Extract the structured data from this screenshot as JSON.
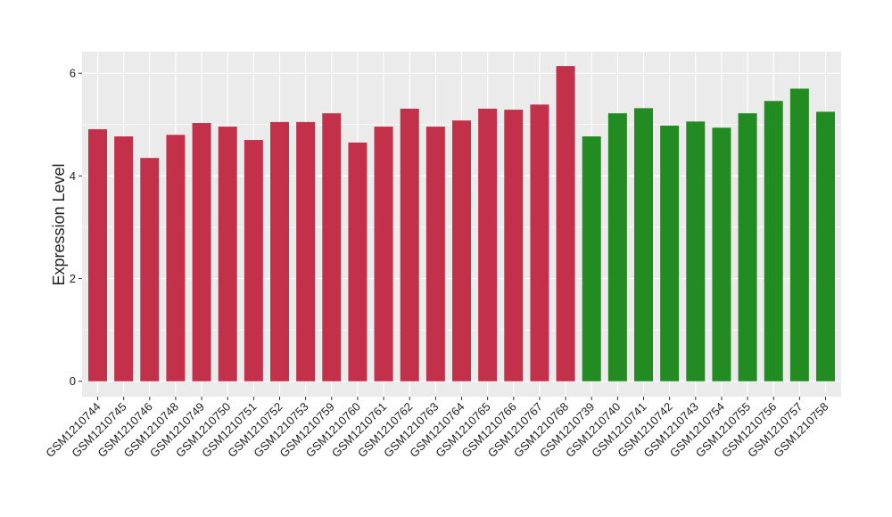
{
  "chart_data": {
    "type": "bar",
    "y_label": "Expression Level",
    "categories": [
      "GSM1210744",
      "GSM1210745",
      "GSM1210746",
      "GSM1210748",
      "GSM1210749",
      "GSM1210750",
      "GSM1210751",
      "GSM1210752",
      "GSM1210753",
      "GSM1210759",
      "GSM1210760",
      "GSM1210761",
      "GSM1210762",
      "GSM1210763",
      "GSM1210764",
      "GSM1210765",
      "GSM1210766",
      "GSM1210767",
      "GSM1210768",
      "GSM1210739",
      "GSM1210740",
      "GSM1210741",
      "GSM1210742",
      "GSM1210743",
      "GSM1210754",
      "GSM1210755",
      "GSM1210756",
      "GSM1210757",
      "GSM1210758"
    ],
    "values": [
      4.91,
      4.77,
      4.35,
      4.8,
      5.03,
      4.96,
      4.7,
      5.05,
      5.05,
      5.22,
      4.65,
      4.96,
      5.31,
      4.96,
      5.08,
      5.31,
      5.29,
      5.39,
      6.14,
      4.77,
      5.22,
      5.32,
      4.98,
      5.06,
      4.94,
      5.22,
      5.46,
      5.7,
      5.25
    ],
    "colors": [
      "#c3304a",
      "#c3304a",
      "#c3304a",
      "#c3304a",
      "#c3304a",
      "#c3304a",
      "#c3304a",
      "#c3304a",
      "#c3304a",
      "#c3304a",
      "#c3304a",
      "#c3304a",
      "#c3304a",
      "#c3304a",
      "#c3304a",
      "#c3304a",
      "#c3304a",
      "#c3304a",
      "#c3304a",
      "#228b22",
      "#228b22",
      "#228b22",
      "#228b22",
      "#228b22",
      "#228b22",
      "#228b22",
      "#228b22",
      "#228b22",
      "#228b22"
    ],
    "ylim": [
      -0.3,
      6.42
    ],
    "yticks": [
      0,
      2,
      4,
      6
    ],
    "grid": true
  }
}
